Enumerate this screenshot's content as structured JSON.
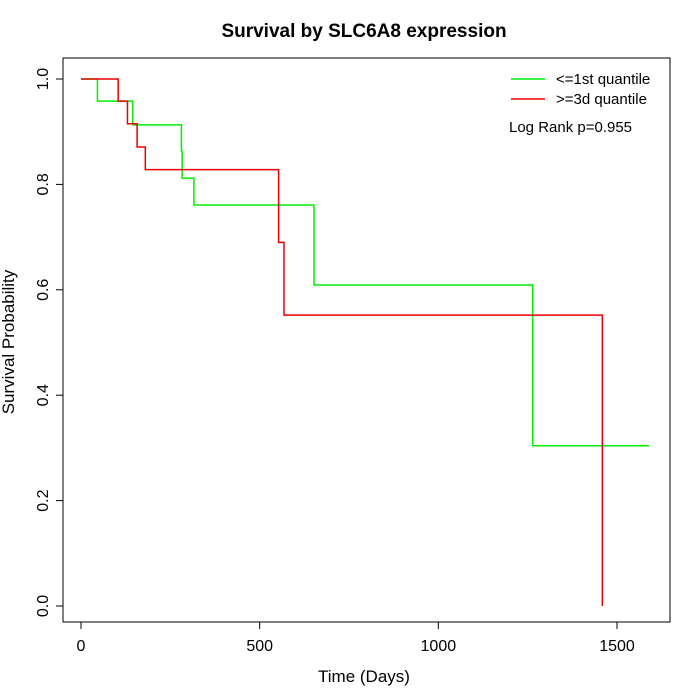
{
  "chart_data": {
    "type": "line",
    "step": true,
    "title": "Survival by SLC6A8 expression",
    "xlabel": "Time (Days)",
    "ylabel": "Survival Probability",
    "xlim": [
      0,
      1590
    ],
    "ylim": [
      0,
      1
    ],
    "xticks": [
      0,
      500,
      1000,
      1500
    ],
    "xtick_labels": [
      "0",
      "500",
      "1000",
      "1500"
    ],
    "yticks": [
      0.0,
      0.2,
      0.4,
      0.6,
      0.8,
      1.0
    ],
    "ytick_labels": [
      "0.0",
      "0.2",
      "0.4",
      "0.6",
      "0.8",
      "1.0"
    ],
    "grid": false,
    "legend_position": "top-right",
    "annotation": "Log Rank p=0.955",
    "series": [
      {
        "name": "<=1st quantile",
        "color": "#00ee00",
        "x": [
          0,
          46,
          128,
          145,
          281,
          283,
          316,
          652,
          1264,
          1590
        ],
        "y": [
          1.0,
          0.958,
          0.958,
          0.913,
          0.863,
          0.812,
          0.761,
          0.609,
          0.304,
          0.304
        ]
      },
      {
        "name": ">=3d quantile",
        "color": "#ee0000",
        "x": [
          0,
          104,
          130,
          157,
          180,
          553,
          568,
          1459,
          1459
        ],
        "y": [
          1.0,
          0.958,
          0.915,
          0.871,
          0.828,
          0.69,
          0.552,
          0.552,
          0.0
        ]
      }
    ]
  }
}
